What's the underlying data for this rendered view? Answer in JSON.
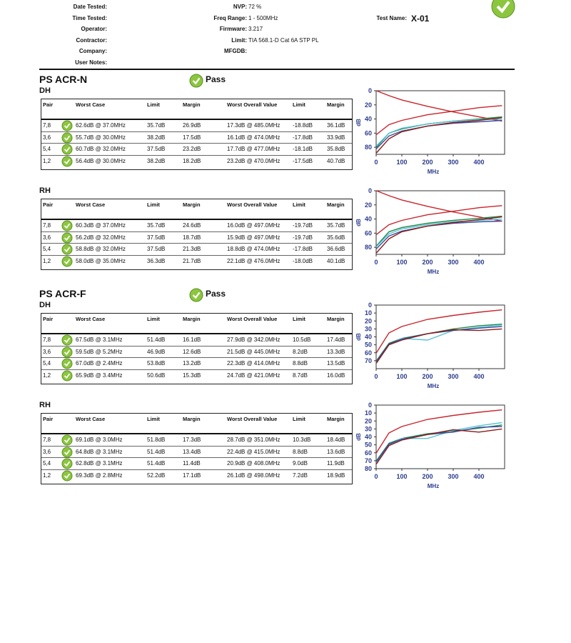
{
  "header": {
    "left_fields": [
      "Date Tested:",
      "Time Tested:",
      "Operator:",
      "Contractor:",
      "Company:",
      "User Notes:"
    ],
    "middle_fields": [
      {
        "label": "NVP:",
        "value": "72 %"
      },
      {
        "label": "Freq Range:",
        "value": "1 - 500MHz"
      },
      {
        "label": "Firmware:",
        "value": "3.217"
      },
      {
        "label": "Limit:",
        "value": "TIA 568.1-D Cat 6A STP PL"
      },
      {
        "label": "MFGDB:"
      }
    ],
    "test_name": {
      "label": "Test Name:",
      "value": "X-01"
    }
  },
  "columns": [
    "Pair",
    "Worst Case",
    "Limit",
    "Margin",
    "Worst Overall Value",
    "Limit",
    "Margin"
  ],
  "sections": [
    {
      "title": "PS ACR-N",
      "result": "Pass",
      "tables": [
        {
          "name": "DH",
          "rows": [
            [
              "7,8",
              "62.6dB @ 37.0MHz",
              "35.7dB",
              "26.9dB",
              "17.3dB @ 485.0MHz",
              "-18.8dB",
              "36.1dB"
            ],
            [
              "3,6",
              "55.7dB @ 30.0MHz",
              "38.2dB",
              "17.5dB",
              "16.1dB @ 474.0MHz",
              "-17.8dB",
              "33.9dB"
            ],
            [
              "5,4",
              "60.7dB @ 32.0MHz",
              "37.5dB",
              "23.2dB",
              "17.7dB @ 477.0MHz",
              "-18.1dB",
              "35.8dB"
            ],
            [
              "1,2",
              "56.4dB @ 30.0MHz",
              "38.2dB",
              "18.2dB",
              "23.2dB @ 470.0MHz",
              "-17.5dB",
              "40.7dB"
            ]
          ],
          "chart": {
            "type": "line",
            "xlabel": "MHz",
            "ylabel": "dB",
            "xlim": [
              0,
              500
            ],
            "ylim": [
              0,
              90
            ],
            "y_inverted": true,
            "xticks": [
              0,
              100,
              200,
              300,
              400
            ],
            "yticks": [
              0,
              20,
              40,
              60,
              80
            ],
            "series": [
              {
                "color": "#c8252c",
                "x": [
                  1,
                  50,
                  100,
                  200,
                  300,
                  400,
                  490
                ],
                "values": [
                  0,
                  7,
                  13,
                  22,
                  30,
                  37,
                  43
                ]
              },
              {
                "color": "#c8252c",
                "x": [
                  1,
                  50,
                  100,
                  200,
                  300,
                  400,
                  490
                ],
                "values": [
                  62,
                  48,
                  42,
                  34,
                  29,
                  24,
                  21
                ]
              },
              {
                "color": "#1e8a4a",
                "x": [
                  1,
                  50,
                  100,
                  200,
                  300,
                  400,
                  490
                ],
                "values": [
                  80,
                  60,
                  54,
                  47,
                  43,
                  40,
                  37
                ]
              },
              {
                "color": "#3a4fa0",
                "x": [
                  1,
                  50,
                  100,
                  200,
                  300,
                  400,
                  490
                ],
                "values": [
                  82,
                  64,
                  57,
                  50,
                  46,
                  44,
                  42
                ]
              },
              {
                "color": "#5bc3d6",
                "x": [
                  1,
                  50,
                  100,
                  200,
                  300,
                  400,
                  490
                ],
                "values": [
                  78,
                  60,
                  53,
                  47,
                  43,
                  41,
                  40
                ]
              },
              {
                "color": "#8c1a1a",
                "x": [
                  1,
                  50,
                  100,
                  200,
                  300,
                  400,
                  490
                ],
                "values": [
                  88,
                  68,
                  58,
                  50,
                  45,
                  42,
                  38
                ]
              }
            ]
          }
        },
        {
          "name": "RH",
          "rows": [
            [
              "7,8",
              "60.3dB @ 37.0MHz",
              "35.7dB",
              "24.6dB",
              "16.0dB @ 497.0MHz",
              "-19.7dB",
              "35.7dB"
            ],
            [
              "3,6",
              "56.2dB @ 32.0MHz",
              "37.5dB",
              "18.7dB",
              "15.9dB @ 497.0MHz",
              "-19.7dB",
              "35.6dB"
            ],
            [
              "5,4",
              "58.8dB @ 32.0MHz",
              "37.5dB",
              "21.3dB",
              "18.8dB @ 474.0MHz",
              "-17.8dB",
              "36.6dB"
            ],
            [
              "1,2",
              "58.0dB @ 35.0MHz",
              "36.3dB",
              "21.7dB",
              "22.1dB @ 476.0MHz",
              "-18.0dB",
              "40.1dB"
            ]
          ],
          "chart": {
            "type": "line",
            "xlabel": "MHz",
            "ylabel": "dB",
            "xlim": [
              0,
              500
            ],
            "ylim": [
              0,
              90
            ],
            "y_inverted": true,
            "xticks": [
              0,
              100,
              200,
              300,
              400
            ],
            "yticks": [
              0,
              20,
              40,
              60,
              80
            ],
            "series": [
              {
                "color": "#c8252c",
                "x": [
                  1,
                  50,
                  100,
                  200,
                  300,
                  400,
                  490
                ],
                "values": [
                  0,
                  7,
                  13,
                  22,
                  30,
                  37,
                  43
                ]
              },
              {
                "color": "#c8252c",
                "x": [
                  1,
                  50,
                  100,
                  200,
                  300,
                  400,
                  490
                ],
                "values": [
                  62,
                  48,
                  42,
                  34,
                  29,
                  24,
                  21
                ]
              },
              {
                "color": "#1e8a4a",
                "x": [
                  1,
                  50,
                  100,
                  200,
                  300,
                  400,
                  490
                ],
                "values": [
                  78,
                  58,
                  52,
                  46,
                  42,
                  39,
                  36
                ]
              },
              {
                "color": "#3a4fa0",
                "x": [
                  1,
                  50,
                  100,
                  200,
                  300,
                  400,
                  490
                ],
                "values": [
                  82,
                  64,
                  57,
                  50,
                  46,
                  44,
                  43
                ]
              },
              {
                "color": "#5bc3d6",
                "x": [
                  1,
                  50,
                  100,
                  200,
                  300,
                  400,
                  490
                ],
                "values": [
                  79,
                  61,
                  54,
                  48,
                  44,
                  42,
                  40
                ]
              },
              {
                "color": "#8c1a1a",
                "x": [
                  1,
                  50,
                  100,
                  200,
                  300,
                  400,
                  490
                ],
                "values": [
                  88,
                  68,
                  58,
                  50,
                  45,
                  41,
                  37
                ]
              }
            ]
          }
        }
      ]
    },
    {
      "title": "PS ACR-F",
      "result": "Pass",
      "tables": [
        {
          "name": "DH",
          "rows": [
            [
              "7,8",
              "67.5dB @ 3.1MHz",
              "51.4dB",
              "16.1dB",
              "27.9dB @ 342.0MHz",
              "10.5dB",
              "17.4dB"
            ],
            [
              "3,6",
              "59.5dB @ 5.2MHz",
              "46.9dB",
              "12.6dB",
              "21.5dB @ 445.0MHz",
              "8.2dB",
              "13.3dB"
            ],
            [
              "5,4",
              "67.0dB @ 2.4MHz",
              "53.8dB",
              "13.2dB",
              "22.3dB @ 414.0MHz",
              "8.8dB",
              "13.5dB"
            ],
            [
              "1,2",
              "65.9dB @ 3.4MHz",
              "50.6dB",
              "15.3dB",
              "24.7dB @ 421.0MHz",
              "8.7dB",
              "16.0dB"
            ]
          ],
          "chart": {
            "type": "line",
            "xlabel": "MHz",
            "ylabel": "dB",
            "xlim": [
              0,
              500
            ],
            "ylim": [
              0,
              80
            ],
            "y_inverted": true,
            "xticks": [
              0,
              100,
              200,
              300,
              400
            ],
            "yticks": [
              0,
              10,
              20,
              30,
              40,
              50,
              60,
              70
            ],
            "series": [
              {
                "color": "#c8252c",
                "x": [
                  1,
                  50,
                  100,
                  200,
                  300,
                  400,
                  490
                ],
                "values": [
                  60,
                  35,
                  27,
                  18,
                  13,
                  9,
                  6
                ]
              },
              {
                "color": "#1e8a4a",
                "x": [
                  1,
                  50,
                  100,
                  200,
                  300,
                  400,
                  490
                ],
                "values": [
                  70,
                  48,
                  42,
                  36,
                  30,
                  26,
                  24
                ]
              },
              {
                "color": "#5bc3d6",
                "x": [
                  1,
                  50,
                  100,
                  200,
                  300,
                  400,
                  490
                ],
                "values": [
                  72,
                  50,
                  42,
                  44,
                  32,
                  28,
                  25
                ]
              },
              {
                "color": "#3a4fa0",
                "x": [
                  1,
                  50,
                  100,
                  200,
                  300,
                  400,
                  490
                ],
                "values": [
                  71,
                  49,
                  43,
                  36,
                  32,
                  29,
                  27
                ]
              },
              {
                "color": "#8c1a1a",
                "x": [
                  1,
                  50,
                  100,
                  200,
                  300,
                  400,
                  490
                ],
                "values": [
                  73,
                  50,
                  44,
                  36,
                  31,
                  32,
                  30
                ]
              }
            ]
          }
        },
        {
          "name": "RH",
          "rows": [
            [
              "7,8",
              "69.1dB @ 3.0MHz",
              "51.8dB",
              "17.3dB",
              "28.7dB @ 351.0MHz",
              "10.3dB",
              "18.4dB"
            ],
            [
              "3,6",
              "64.8dB @ 3.1MHz",
              "51.4dB",
              "13.4dB",
              "22.4dB @ 415.0MHz",
              "8.8dB",
              "13.6dB"
            ],
            [
              "5,4",
              "62.8dB @ 3.1MHz",
              "51.4dB",
              "11.4dB",
              "20.9dB @ 408.0MHz",
              "9.0dB",
              "11.9dB"
            ],
            [
              "1,2",
              "69.3dB @ 2.8MHz",
              "52.2dB",
              "17.1dB",
              "26.1dB @ 498.0MHz",
              "7.2dB",
              "18.9dB"
            ]
          ],
          "chart": {
            "type": "line",
            "xlabel": "MHz",
            "ylabel": "dB",
            "xlim": [
              0,
              500
            ],
            "ylim": [
              0,
              80
            ],
            "y_inverted": true,
            "xticks": [
              0,
              100,
              200,
              300,
              400
            ],
            "yticks": [
              0,
              10,
              20,
              30,
              40,
              50,
              60,
              70,
              80
            ],
            "series": [
              {
                "color": "#c8252c",
                "x": [
                  1,
                  50,
                  100,
                  200,
                  300,
                  400,
                  490
                ],
                "values": [
                  60,
                  35,
                  27,
                  18,
                  13,
                  9,
                  6
                ]
              },
              {
                "color": "#1e8a4a",
                "x": [
                  1,
                  50,
                  100,
                  200,
                  300,
                  400,
                  490
                ],
                "values": [
                  70,
                  48,
                  42,
                  36,
                  33,
                  29,
                  25
                ]
              },
              {
                "color": "#5bc3d6",
                "x": [
                  1,
                  50,
                  100,
                  200,
                  300,
                  400,
                  490
                ],
                "values": [
                  72,
                  50,
                  42,
                  42,
                  32,
                  26,
                  22
                ]
              },
              {
                "color": "#3a4fa0",
                "x": [
                  1,
                  50,
                  100,
                  200,
                  300,
                  400,
                  490
                ],
                "values": [
                  71,
                  49,
                  43,
                  37,
                  34,
                  28,
                  27
                ]
              },
              {
                "color": "#8c1a1a",
                "x": [
                  1,
                  50,
                  100,
                  200,
                  300,
                  400,
                  490
                ],
                "values": [
                  74,
                  51,
                  44,
                  37,
                  31,
                  34,
                  30
                ]
              }
            ]
          }
        }
      ]
    }
  ]
}
